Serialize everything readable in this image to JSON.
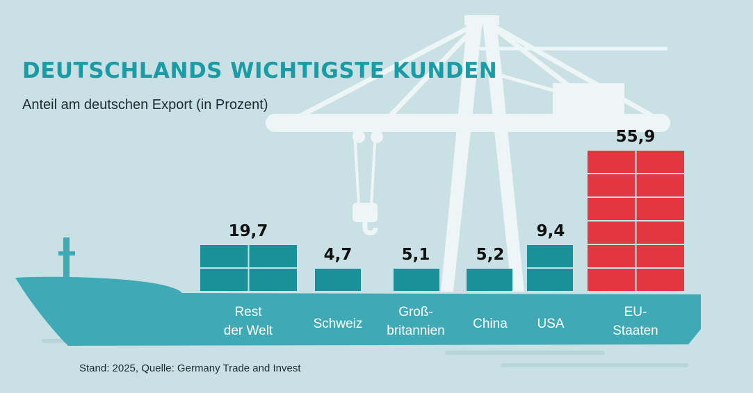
{
  "header": {
    "title": "DEUTSCHLANDS WICHTIGSTE KUNDEN",
    "subtitle": "Anteil am deutschen Export (in Prozent)"
  },
  "footer": {
    "source": "Stand: 2025, Quelle: Germany Trade and Invest"
  },
  "colors": {
    "background": "#c9e1e5",
    "crane": "#eef5f6",
    "hull": "#3faab6",
    "container_teal": "#1a9099",
    "container_red": "#e3363f",
    "title": "#1a9ba5",
    "text": "#1f2a30"
  },
  "chart_data": {
    "type": "bar",
    "categories": [
      [
        "Rest",
        "der Welt"
      ],
      [
        "Schweiz"
      ],
      [
        "Groß-",
        "britannien"
      ],
      [
        "China"
      ],
      [
        "USA"
      ],
      [
        "EU-",
        "Staaten"
      ]
    ],
    "values": [
      19.7,
      4.7,
      5.1,
      5.2,
      9.4,
      55.9
    ],
    "value_labels": [
      "19,7",
      "4,7",
      "5,1",
      "5,2",
      "9,4",
      "55,9"
    ],
    "highlight_index": 5,
    "title": "DEUTSCHLANDS WICHTIGSTE KUNDEN",
    "subtitle": "Anteil am deutschen Export (in Prozent)",
    "unit": "Prozent"
  }
}
